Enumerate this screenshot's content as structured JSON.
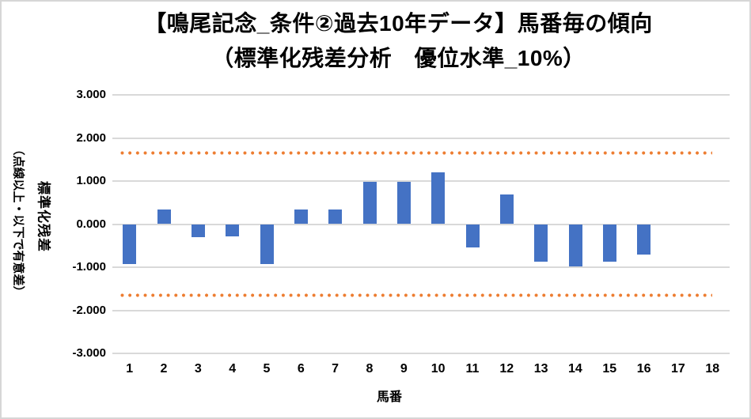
{
  "title": {
    "line1": "【鳴尾記念_条件②過去10年データ】馬番毎の傾向",
    "line2": "（標準化残差分析　優位水準_10%）"
  },
  "y_axis": {
    "title": "標準化残差",
    "note": "（点線以上・以下で有意差）",
    "tick_labels": [
      "3.000",
      "2.000",
      "1.000",
      "0.000",
      "-1.000",
      "-2.000",
      "-3.000"
    ],
    "max": 3.0,
    "min": -3.0
  },
  "x_axis": {
    "title": "馬番",
    "tick_labels": [
      "1",
      "2",
      "3",
      "4",
      "5",
      "6",
      "7",
      "8",
      "9",
      "10",
      "11",
      "12",
      "13",
      "14",
      "15",
      "16",
      "17",
      "18"
    ]
  },
  "colors": {
    "bar": "#4472C4",
    "threshold_line": "#ED7D31",
    "gridline": "#D9D9D9",
    "text": "#000000",
    "border": "#D6D6D6",
    "background": "#FFFFFF"
  },
  "chart_data": {
    "type": "bar",
    "title": "【鳴尾記念_条件②過去10年データ】馬番毎の傾向（標準化残差分析　優位水準_10%）",
    "xlabel": "馬番",
    "ylabel": "標準化残差（点線以上・以下で有意差）",
    "categories": [
      1,
      2,
      3,
      4,
      5,
      6,
      7,
      8,
      9,
      10,
      11,
      12,
      13,
      14,
      15,
      16,
      17,
      18
    ],
    "values": [
      -0.93,
      0.34,
      -0.3,
      -0.28,
      -0.93,
      0.34,
      0.34,
      0.98,
      0.98,
      1.21,
      -0.55,
      0.69,
      -0.87,
      -0.98,
      -0.87,
      -0.7,
      0,
      0
    ],
    "ylim": [
      -3.0,
      3.0
    ],
    "y_tick_step": 1.0,
    "grid": true,
    "legend": false,
    "significance_lines": {
      "upper": 1.645,
      "lower": -1.645,
      "style": "dotted",
      "color": "#ED7D31",
      "meaning": "10% significance threshold"
    }
  }
}
